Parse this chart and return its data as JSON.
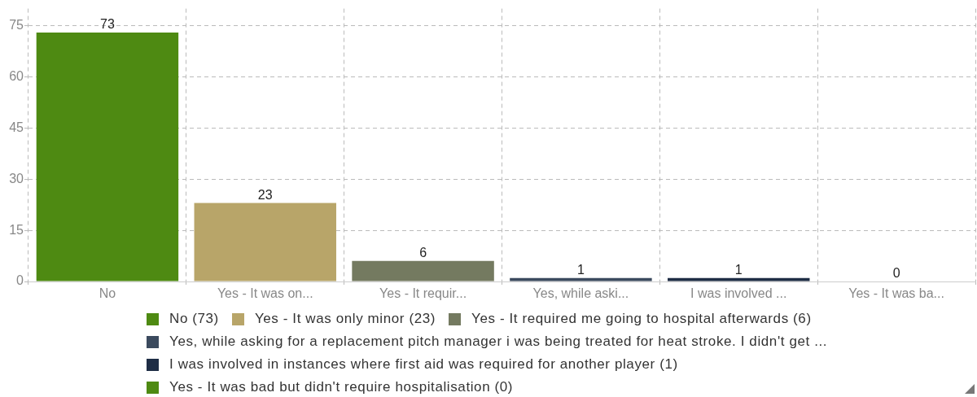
{
  "chart_data": {
    "type": "bar",
    "categories": [
      "No",
      "Yes - It was on...",
      "Yes - It requir...",
      "Yes, while aski...",
      "I was involved ...",
      "Yes - It was ba..."
    ],
    "series": [
      {
        "name": "No (73)",
        "color": "#4e8a12",
        "values": [
          73,
          null,
          null,
          null,
          null,
          null
        ]
      },
      {
        "name": "Yes - It was only minor (23)",
        "color": "#b8a569",
        "values": [
          null,
          23,
          null,
          null,
          null,
          null
        ]
      },
      {
        "name": "Yes - It required me going to hospital afterwards (6)",
        "color": "#747a60",
        "values": [
          null,
          null,
          6,
          null,
          null,
          null
        ]
      },
      {
        "name": "Yes, while asking for a replacement pitch manager i was being treated for heat stroke. I didn't get ...",
        "color": "#3b4a5e",
        "values": [
          null,
          null,
          null,
          1,
          null,
          null
        ]
      },
      {
        "name": "I was involved in instances where first aid was required for another player (1)",
        "color": "#1e2d45",
        "values": [
          null,
          null,
          null,
          null,
          1,
          null
        ]
      },
      {
        "name": "Yes - It was bad but didn't require hospitalisation (0)",
        "color": "#4e8a12",
        "values": [
          null,
          null,
          null,
          null,
          null,
          0
        ]
      }
    ],
    "ylim": [
      0,
      80
    ],
    "yticks": [
      0,
      15,
      30,
      45,
      60,
      75
    ],
    "grid": true,
    "legend": "bottom",
    "data_labels": true
  }
}
